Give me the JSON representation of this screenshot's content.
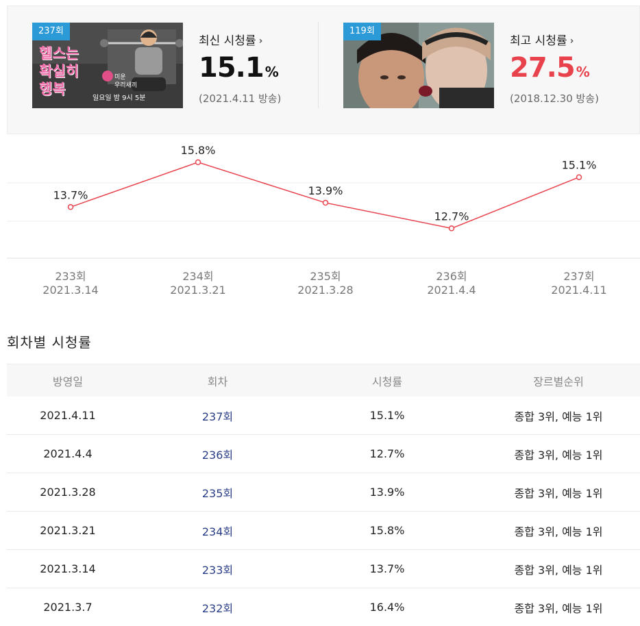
{
  "cards": {
    "latest": {
      "badge": "237회",
      "label": "최신 시청률",
      "value": "15.1",
      "unit": "%",
      "date": "(2021.4.11 방송)",
      "thumb_text": [
        "헬스는",
        "확실히",
        "행복"
      ],
      "thumb_caption": "일요일 밤 9시 5분"
    },
    "highest": {
      "badge": "119회",
      "label": "최고 시청률",
      "value": "27.5",
      "unit": "%",
      "date": "(2018.12.30 방송)"
    }
  },
  "chart_data": {
    "type": "line",
    "categories": [
      "233회 2021.3.14",
      "234회 2021.3.21",
      "235회 2021.3.28",
      "236회 2021.4.4",
      "237회 2021.4.11"
    ],
    "x_episodes": [
      "233회",
      "234회",
      "235회",
      "236회",
      "237회"
    ],
    "x_dates": [
      "2021.3.14",
      "2021.3.21",
      "2021.3.28",
      "2021.4.4",
      "2021.4.11"
    ],
    "values": [
      13.7,
      15.8,
      13.9,
      12.7,
      15.1
    ],
    "labels": [
      "13.7%",
      "15.8%",
      "13.9%",
      "12.7%",
      "15.1%"
    ],
    "ylim": [
      11.3,
      16.6
    ],
    "line_color": "#e8424d",
    "grid": true
  },
  "section_title": "회차별 시청률",
  "table": {
    "headers": [
      "방영일",
      "회차",
      "시청률",
      "장르별순위"
    ],
    "rows": [
      [
        "2021.4.11",
        "237회",
        "15.1%",
        "종합 3위, 예능 1위"
      ],
      [
        "2021.4.4",
        "236회",
        "12.7%",
        "종합 3위, 예능 1위"
      ],
      [
        "2021.3.28",
        "235회",
        "13.9%",
        "종합 3위, 예능 1위"
      ],
      [
        "2021.3.21",
        "234회",
        "15.8%",
        "종합 3위, 예능 1위"
      ],
      [
        "2021.3.14",
        "233회",
        "13.7%",
        "종합 3위, 예능 1위"
      ],
      [
        "2021.3.7",
        "232회",
        "16.4%",
        "종합 3위, 예능 1위"
      ]
    ]
  },
  "colors": {
    "accent_red": "#e8424d",
    "badge_blue": "#2d9ad8",
    "episode_blue": "#2a3e87"
  }
}
